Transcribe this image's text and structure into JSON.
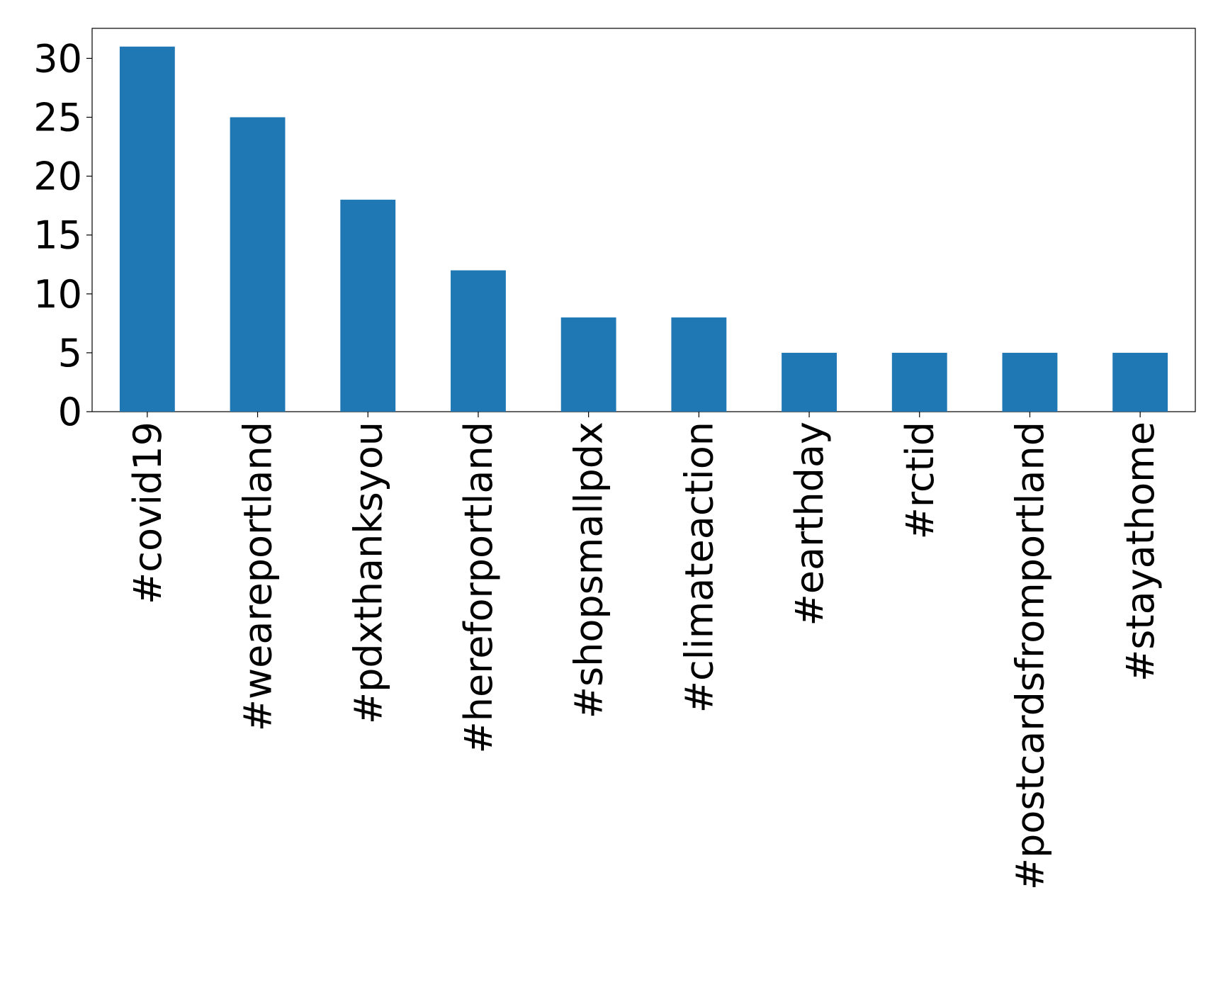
{
  "chart_data": {
    "type": "bar",
    "categories": [
      "#covid19",
      "#weareportland",
      "#pdxthanksyou",
      "#hereforportland",
      "#shopsmallpdx",
      "#climateaction",
      "#earthday",
      "#rctid",
      "#postcardsfromportland",
      "#stayathome"
    ],
    "values": [
      31,
      25,
      18,
      12,
      8,
      8,
      5,
      5,
      5,
      5
    ],
    "color": "#1f77b4",
    "ylim": [
      0,
      32.55
    ],
    "yticks": [
      0,
      5,
      10,
      15,
      20,
      25,
      30
    ],
    "grid": false
  }
}
